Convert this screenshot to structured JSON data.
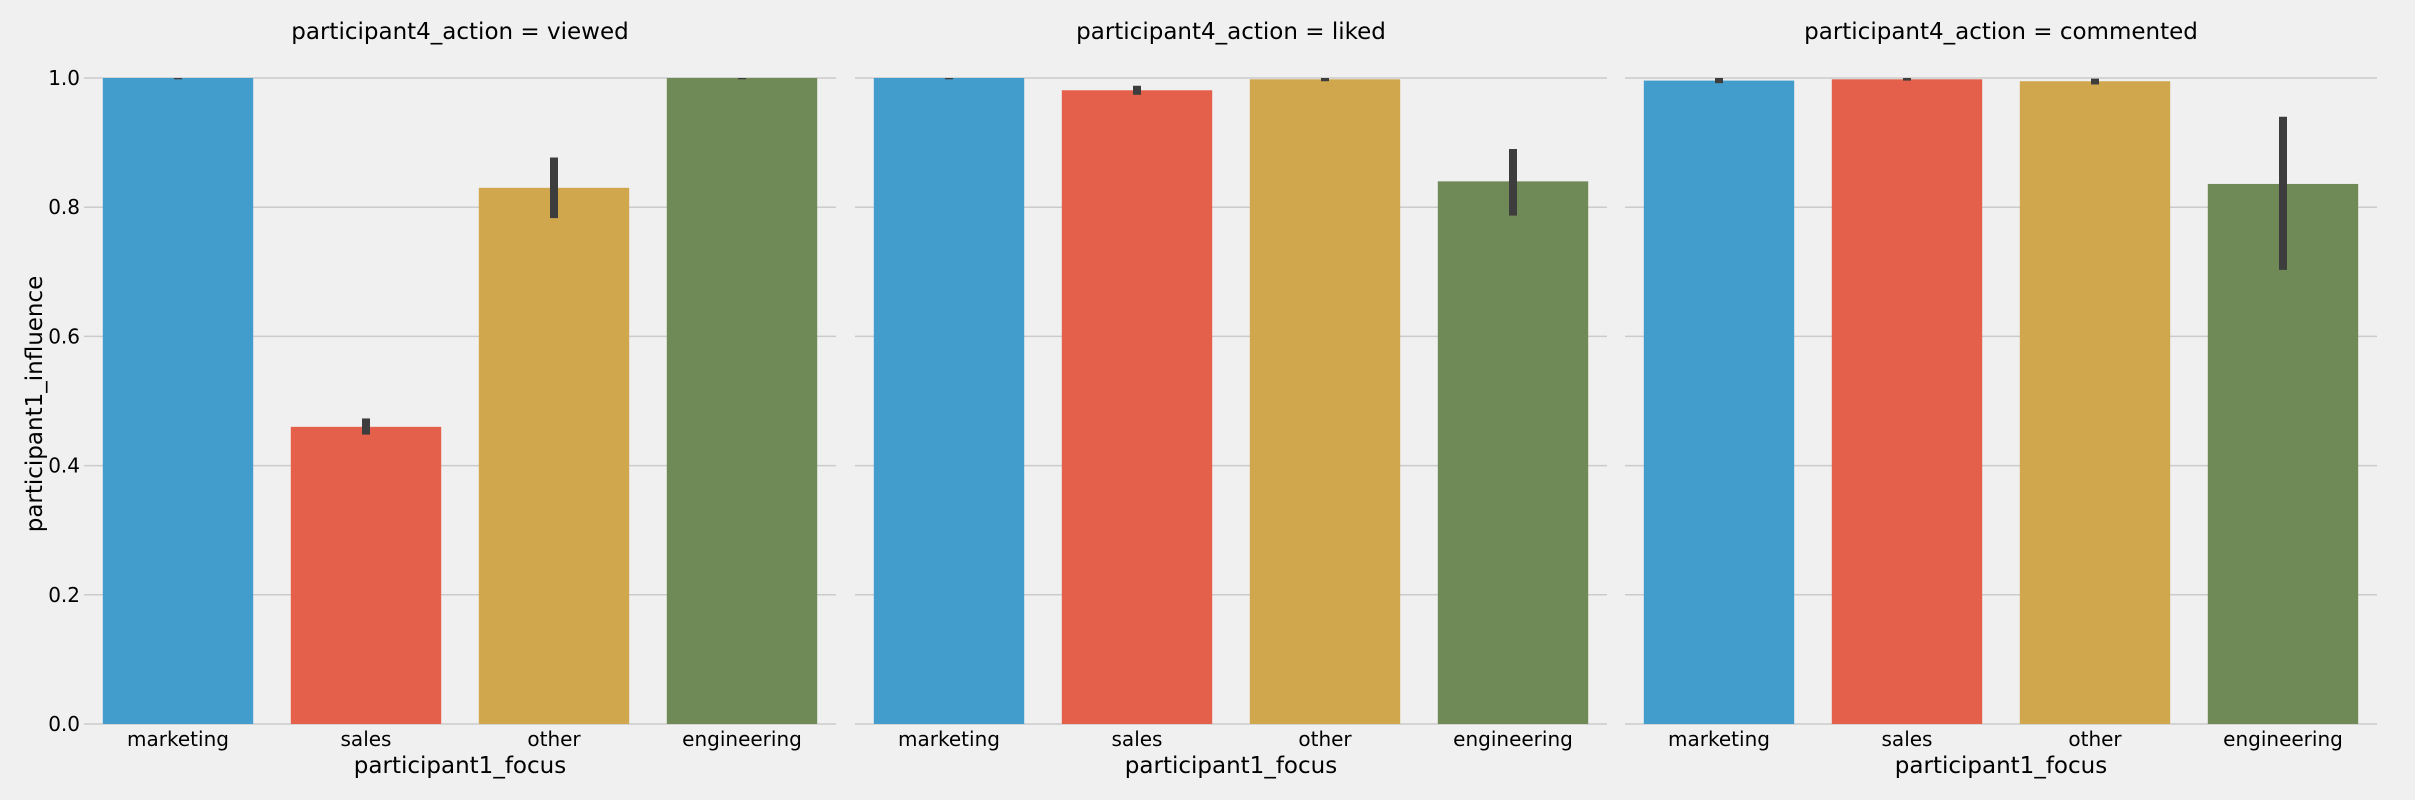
{
  "chart_data": {
    "type": "bar",
    "ylabel": "participant1_influence",
    "xlabel": "participant1_focus",
    "ylim": [
      0,
      1.0
    ],
    "yticks": [
      "0.0",
      "0.2",
      "0.4",
      "0.6",
      "0.8",
      "1.0"
    ],
    "grid": true,
    "categories": [
      "marketing",
      "sales",
      "other",
      "engineering"
    ],
    "colors": [
      "#439dcc",
      "#e4604a",
      "#d1a74e",
      "#6f8a56"
    ],
    "errorbar_color": "#3d3d3d",
    "panels": [
      {
        "title": "participant4_action = viewed",
        "values": [
          1.0,
          0.46,
          0.83,
          1.0
        ],
        "ci": [
          [
            0.998,
            1.0
          ],
          [
            0.448,
            0.473
          ],
          [
            0.783,
            0.877
          ],
          [
            0.998,
            1.0
          ]
        ]
      },
      {
        "title": "participant4_action = liked",
        "values": [
          1.0,
          0.981,
          0.998,
          0.84
        ],
        "ci": [
          [
            0.998,
            1.0
          ],
          [
            0.974,
            0.988
          ],
          [
            0.995,
            1.0
          ],
          [
            0.787,
            0.89
          ]
        ]
      },
      {
        "title": "participant4_action = commented",
        "values": [
          0.996,
          0.998,
          0.995,
          0.836
        ],
        "ci": [
          [
            0.992,
            1.0
          ],
          [
            0.996,
            1.0
          ],
          [
            0.99,
            0.999
          ],
          [
            0.703,
            0.94
          ]
        ]
      }
    ]
  }
}
